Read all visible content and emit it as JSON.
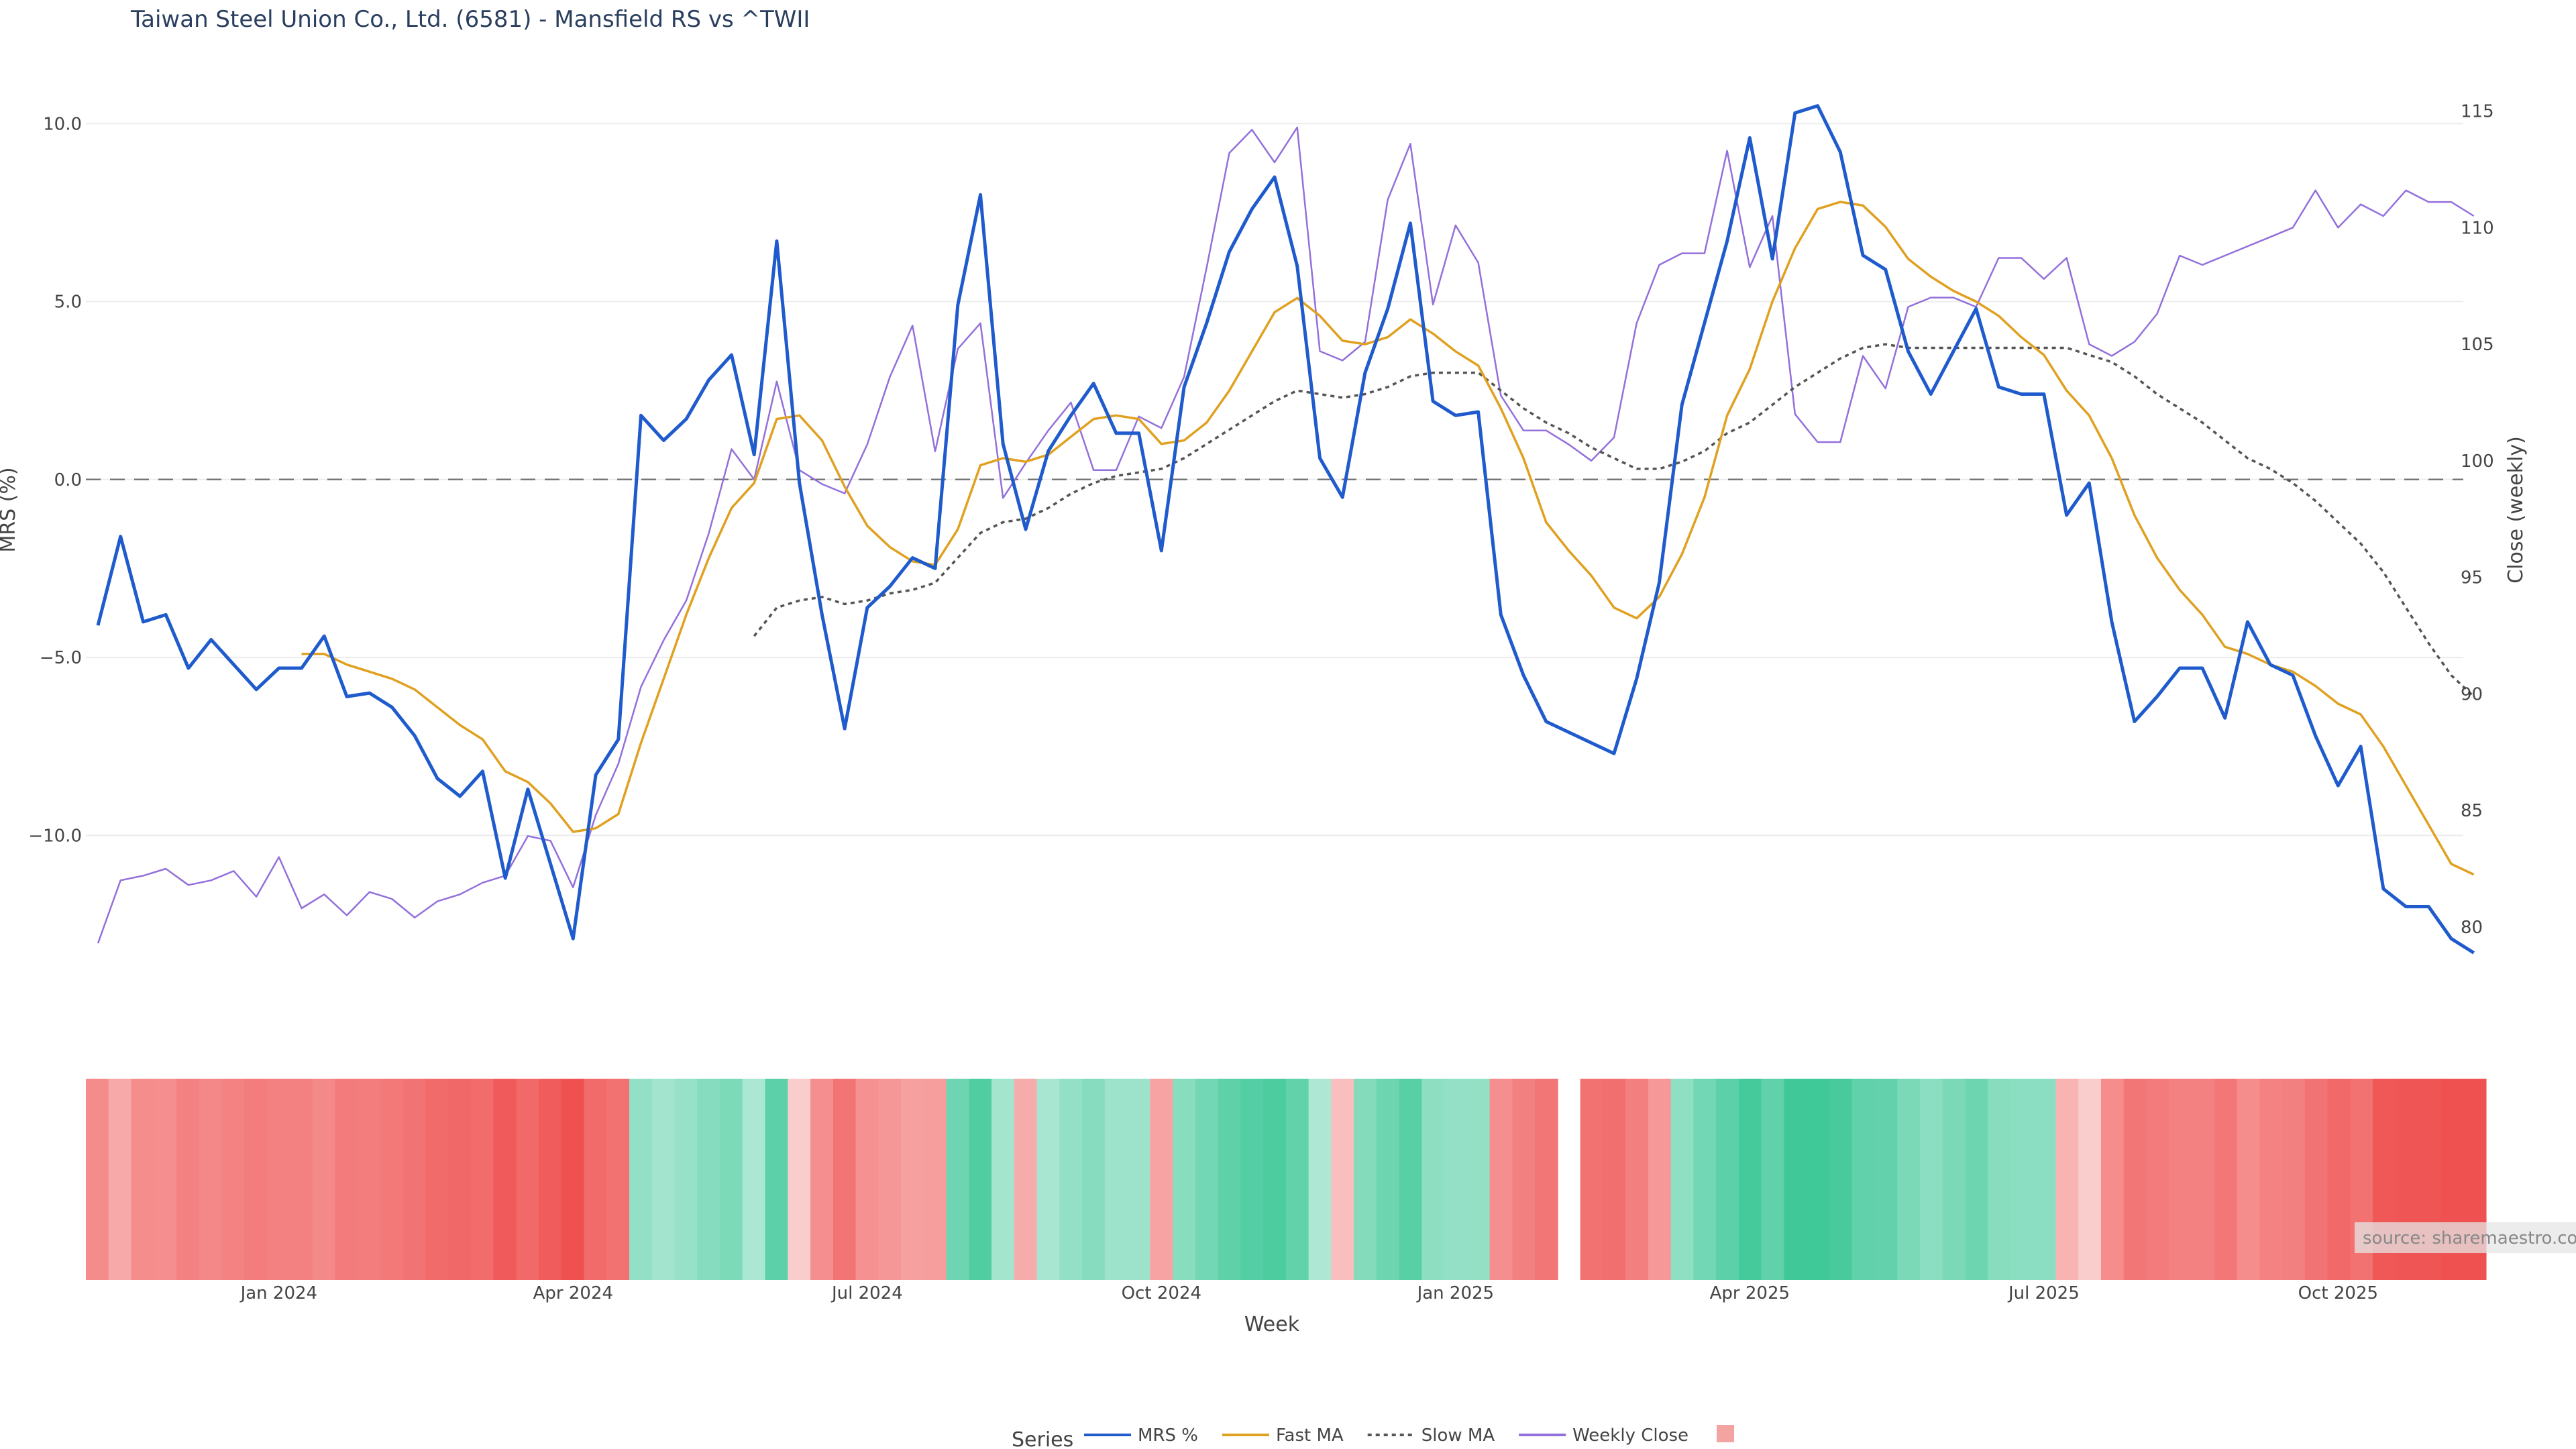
{
  "chart_data": {
    "type": "line",
    "title": "Taiwan Steel Union Co., Ltd. (6581) - Mansfield RS vs ^TWII",
    "xlabel": "Week",
    "ylabel_left": "MRS (%)",
    "ylabel_right": "Close (weekly)",
    "y_left_ticks": [
      "10.0",
      "5.0",
      "0.0",
      "−5.0",
      "−10.0"
    ],
    "y_left_tick_values": [
      10,
      5,
      0,
      -5,
      -10
    ],
    "y_left_range": [
      -14.8,
      11.4
    ],
    "y_right_ticks": [
      "115",
      "110",
      "105",
      "100",
      "95",
      "90",
      "85",
      "80"
    ],
    "y_right_tick_values": [
      115,
      110,
      105,
      100,
      95,
      90,
      85,
      80
    ],
    "y_right_range": [
      76.6,
      116.6
    ],
    "x_ticks": [
      "Jan 2024",
      "Apr 2024",
      "Jul 2024",
      "Oct 2024",
      "Jan 2025",
      "Apr 2025",
      "Jul 2025",
      "Oct 2025"
    ],
    "x_tick_weeks": [
      8,
      21,
      34,
      47,
      60,
      73,
      86,
      99
    ],
    "reference_line_y": 0,
    "n_weeks": 105,
    "gap_week": 65,
    "series": [
      {
        "name": "MRS %",
        "color": "#1f5bcc",
        "style": "solid",
        "values": [
          -4.1,
          -1.6,
          -4.0,
          -3.8,
          -5.3,
          -4.5,
          -5.2,
          -5.9,
          -5.3,
          -5.3,
          -4.4,
          -6.1,
          -6.0,
          -6.4,
          -7.2,
          -8.4,
          -8.9,
          -8.2,
          -11.2,
          -8.7,
          -10.8,
          -12.9,
          -8.3,
          -7.3,
          1.8,
          1.1,
          1.7,
          2.8,
          3.5,
          0.7,
          6.7,
          -0.1,
          -3.8,
          -7.0,
          -3.6,
          -3.0,
          -2.2,
          -2.5,
          4.9,
          8.0,
          1.0,
          -1.4,
          0.8,
          1.8,
          2.7,
          1.3,
          1.3,
          -2.0,
          2.6,
          4.4,
          6.4,
          7.6,
          8.5,
          6.0,
          0.6,
          -0.5,
          3.0,
          4.8,
          7.2,
          2.2,
          1.8,
          1.9,
          -3.8,
          -5.5,
          -6.8,
          -7.1,
          -7.4,
          -7.7,
          -5.6,
          -2.9,
          2.1,
          4.4,
          6.7,
          9.6,
          6.2,
          10.3,
          10.5,
          9.2,
          6.3,
          5.9,
          3.6,
          2.4,
          3.6,
          4.8,
          2.6,
          2.4,
          2.4,
          -1.0,
          -0.1,
          -4.0,
          -6.8,
          -6.1,
          -5.3,
          -5.3,
          -6.7,
          -4.0,
          -5.2,
          -5.5,
          -7.2,
          -8.6,
          -7.5,
          -11.5,
          -12.0,
          -12.0,
          -12.9,
          -13.3
        ]
      },
      {
        "name": "Fast MA",
        "color": "#e0a020",
        "style": "solid",
        "values": [
          null,
          null,
          null,
          null,
          null,
          null,
          null,
          null,
          null,
          -4.9,
          -4.9,
          -5.2,
          -5.4,
          -5.6,
          -5.9,
          -6.4,
          -6.9,
          -7.3,
          -8.2,
          -8.5,
          -9.1,
          -9.9,
          -9.8,
          -9.4,
          -7.4,
          -5.6,
          -3.8,
          -2.2,
          -0.8,
          -0.1,
          1.7,
          1.8,
          1.1,
          -0.2,
          -1.3,
          -1.9,
          -2.3,
          -2.4,
          -1.4,
          0.4,
          0.6,
          0.5,
          0.7,
          1.2,
          1.7,
          1.8,
          1.7,
          1.0,
          1.1,
          1.6,
          2.5,
          3.6,
          4.7,
          5.1,
          4.6,
          3.9,
          3.8,
          4.0,
          4.5,
          4.1,
          3.6,
          3.2,
          2.0,
          0.6,
          -1.2,
          -2.0,
          -2.7,
          -3.6,
          -3.9,
          -3.3,
          -2.1,
          -0.5,
          1.8,
          3.1,
          5.0,
          6.5,
          7.6,
          7.8,
          7.7,
          7.1,
          6.2,
          5.7,
          5.3,
          5.0,
          4.6,
          4.0,
          3.5,
          2.5,
          1.8,
          0.6,
          -1.0,
          -2.2,
          -3.1,
          -3.8,
          -4.7,
          -4.9,
          -5.2,
          -5.4,
          -5.8,
          -6.3,
          -6.6,
          -7.5,
          -8.6,
          -9.7,
          -10.8,
          -11.1
        ]
      },
      {
        "name": "Slow MA",
        "color": "#555555",
        "style": "dot",
        "values": [
          null,
          null,
          null,
          null,
          null,
          null,
          null,
          null,
          null,
          null,
          null,
          null,
          null,
          null,
          null,
          null,
          null,
          null,
          null,
          null,
          null,
          null,
          null,
          null,
          null,
          null,
          null,
          null,
          null,
          -4.4,
          -3.6,
          -3.4,
          -3.3,
          -3.5,
          -3.4,
          -3.2,
          -3.1,
          -2.9,
          -2.2,
          -1.5,
          -1.2,
          -1.1,
          -0.8,
          -0.4,
          -0.1,
          0.1,
          0.2,
          0.3,
          0.6,
          1.0,
          1.4,
          1.8,
          2.2,
          2.5,
          2.4,
          2.3,
          2.4,
          2.6,
          2.9,
          3.0,
          3.0,
          3.0,
          2.5,
          2.0,
          1.6,
          1.3,
          0.9,
          0.6,
          0.3,
          0.3,
          0.5,
          0.8,
          1.3,
          1.6,
          2.1,
          2.6,
          3.0,
          3.4,
          3.7,
          3.8,
          3.7,
          3.7,
          3.7,
          3.7,
          3.7,
          3.7,
          3.7,
          3.7,
          3.5,
          3.3,
          2.9,
          2.4,
          2.0,
          1.6,
          1.1,
          0.6,
          0.3,
          -0.1,
          -0.6,
          -1.2,
          -1.8,
          -2.6,
          -3.6,
          -4.6,
          -5.5,
          -6.1
        ]
      },
      {
        "name": "Weekly Close",
        "color": "#9370db",
        "style": "solid",
        "axis": "right",
        "values": [
          79.3,
          82.0,
          82.2,
          82.5,
          81.8,
          82.0,
          82.4,
          81.3,
          83.0,
          80.8,
          81.4,
          80.5,
          81.5,
          81.2,
          80.4,
          81.1,
          81.4,
          81.9,
          82.2,
          83.9,
          83.7,
          81.7,
          84.8,
          87.0,
          90.3,
          92.3,
          94.0,
          96.9,
          100.5,
          99.2,
          103.4,
          99.6,
          99.0,
          98.6,
          100.7,
          103.6,
          105.8,
          100.4,
          104.8,
          105.9,
          98.4,
          99.9,
          101.3,
          102.5,
          99.6,
          99.6,
          101.9,
          101.4,
          103.6,
          108.3,
          113.2,
          114.2,
          112.8,
          114.3,
          104.7,
          104.3,
          105.1,
          111.2,
          113.6,
          106.7,
          110.1,
          108.5,
          102.8,
          101.3,
          101.3,
          100.7,
          100.0,
          101.0,
          105.9,
          108.4,
          108.9,
          108.9,
          113.3,
          108.3,
          110.5,
          102.0,
          100.8,
          100.8,
          104.5,
          103.1,
          106.6,
          107.0,
          107.0,
          106.6,
          108.7,
          108.7,
          107.8,
          108.7,
          105.0,
          104.5,
          105.1,
          106.3,
          108.8,
          108.4,
          108.8,
          109.2,
          109.6,
          110.0,
          111.6,
          110.0,
          111.0,
          110.5,
          111.6,
          111.1,
          111.1,
          110.5
        ]
      }
    ],
    "heatmap": {
      "description_free": true,
      "positive_color": "#2ec38f",
      "negative_color": "#ef5050",
      "colorscale_range": [
        -13,
        13
      ],
      "legend_swatch_color": "#f4a3a3"
    },
    "legend_title": "Series",
    "legend_items": [
      "MRS %",
      "Fast MA",
      "Slow MA",
      "Weekly Close",
      ""
    ]
  },
  "watermark": "source: sharemaestro.com"
}
